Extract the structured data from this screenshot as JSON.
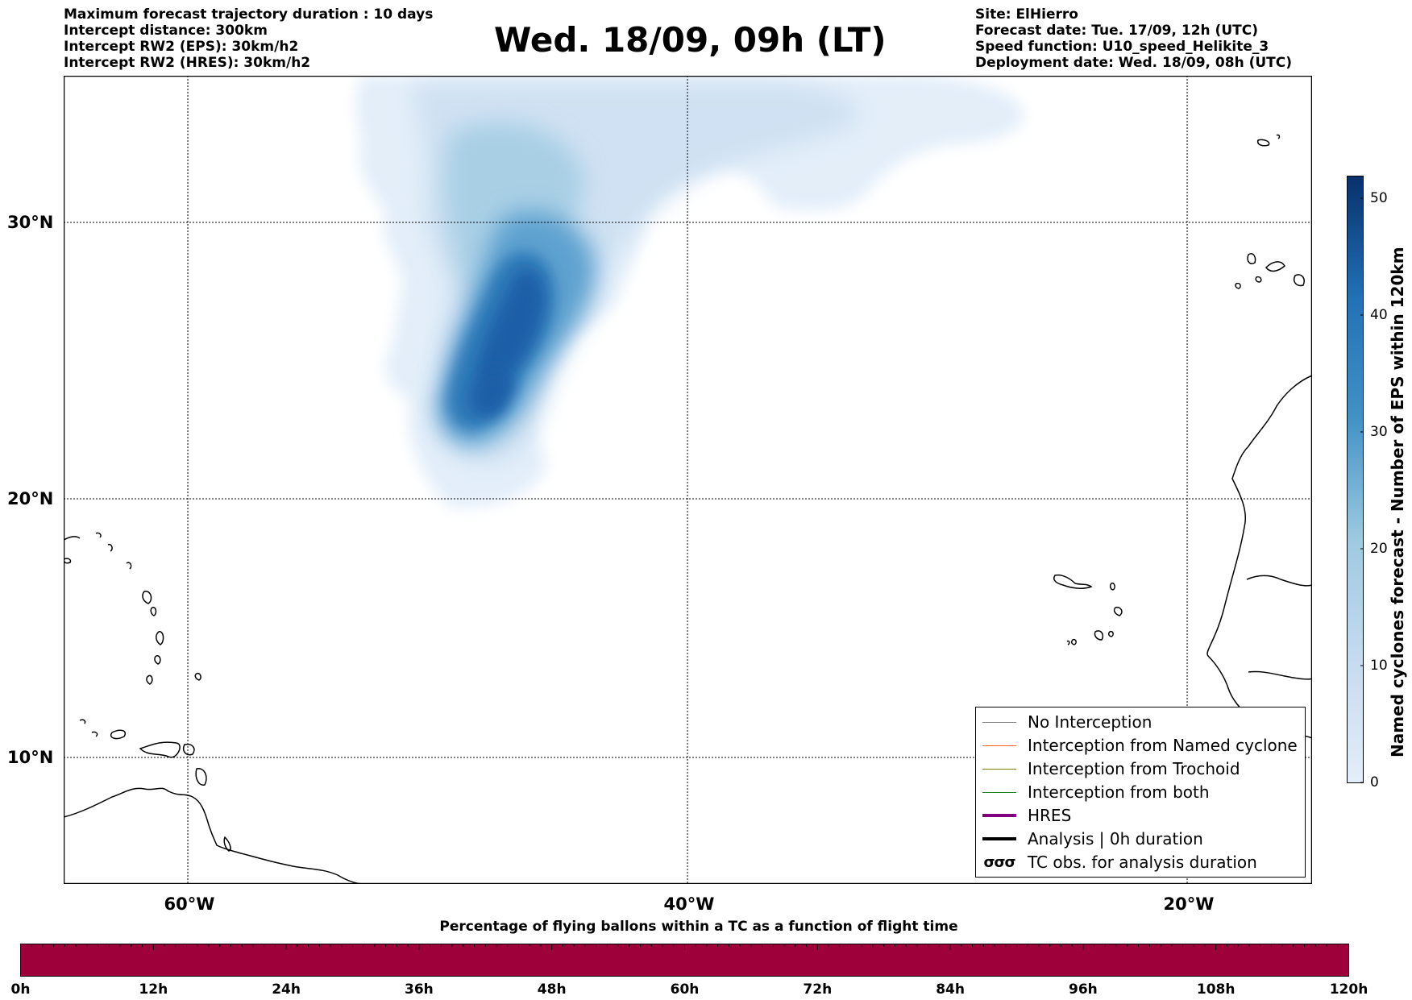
{
  "header_left": [
    "Maximum forecast trajectory duration : 10 days",
    "Intercept distance: 300km",
    "Intercept RW2 (EPS):  30km/h2",
    "Intercept RW2 (HRES): 30km/h2"
  ],
  "title": "Wed. 18/09, 09h (LT)",
  "header_right": [
    "Site: ElHierro",
    "Forecast date: Tue. 17/09, 12h (UTC)",
    "Speed function: U10_speed_Helikite_3",
    "Deployment date: Wed. 18/09, 08h (UTC)"
  ],
  "map": {
    "lat_labels": [
      "30°N",
      "20°N",
      "10°N"
    ],
    "lon_labels": [
      "60°W",
      "40°W",
      "20°W"
    ]
  },
  "legend": [
    {
      "label": "No Interception",
      "color": "#808080"
    },
    {
      "label": "Interception from Named cyclone",
      "color": "#ff6020"
    },
    {
      "label": "Interception from Trochoid",
      "color": "#808000"
    },
    {
      "label": "Interception from both",
      "color": "#208020"
    },
    {
      "label": "HRES",
      "color": "#800080"
    },
    {
      "label": "Analysis | 0h duration",
      "color": "#000000"
    },
    {
      "label": "TC obs. for analysis duration",
      "symbol": "σσσ"
    }
  ],
  "colorbar": {
    "label": "Named cyclones forecast - Number of EPS within 120km",
    "ticks": [
      "0",
      "10",
      "20",
      "30",
      "40",
      "50"
    ],
    "colors": [
      "#e3eef9",
      "#08306b"
    ]
  },
  "timebar": {
    "title": "Percentage of flying ballons within a TC as a function of flight time",
    "ticks": [
      "0h",
      "12h",
      "24h",
      "36h",
      "48h",
      "60h",
      "72h",
      "84h",
      "96h",
      "108h",
      "120h"
    ],
    "color": "#9e003a"
  }
}
